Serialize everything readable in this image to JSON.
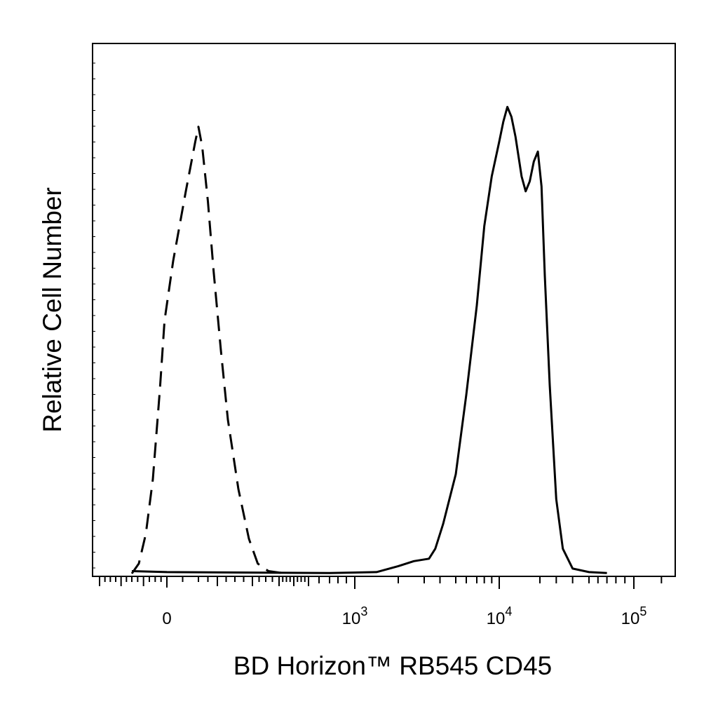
{
  "chart_data": {
    "type": "line",
    "title": "",
    "xlabel": "BD Horizon™ RB545 CD45",
    "ylabel": "Relative Cell Number",
    "x_scale": "biexponential (linear near 0, log above)",
    "x_tick_labels": [
      {
        "value": 0,
        "base": "0",
        "exp": ""
      },
      {
        "value": 1000,
        "base": "10",
        "exp": "3"
      },
      {
        "value": 10000,
        "base": "10",
        "exp": "4"
      },
      {
        "value": 100000,
        "base": "10",
        "exp": "5"
      }
    ],
    "xlim": [
      -300,
      250000
    ],
    "ylim": [
      0,
      100
    ],
    "grid": false,
    "legend": "none",
    "series": [
      {
        "style": "dashed",
        "color": "#000000",
        "points": [
          [
            -150,
            0
          ],
          [
            -120,
            2
          ],
          [
            -90,
            8
          ],
          [
            -60,
            19
          ],
          [
            -30,
            37
          ],
          [
            -10,
            51
          ],
          [
            10,
            63
          ],
          [
            30,
            77
          ],
          [
            45,
            87
          ],
          [
            50,
            90
          ],
          [
            60,
            86
          ],
          [
            75,
            75
          ],
          [
            90,
            61
          ],
          [
            110,
            45
          ],
          [
            130,
            31
          ],
          [
            160,
            17
          ],
          [
            190,
            7
          ],
          [
            220,
            2
          ],
          [
            260,
            0.5
          ],
          [
            300,
            0.2
          ],
          [
            340,
            0.1
          ]
        ]
      },
      {
        "style": "solid",
        "color": "#000000",
        "points": [
          [
            -150,
            0.5
          ],
          [
            0,
            0.3
          ],
          [
            200,
            0.2
          ],
          [
            700,
            0.1
          ],
          [
            1500,
            0.3
          ],
          [
            2000,
            1.5
          ],
          [
            2600,
            2.5
          ],
          [
            3300,
            3
          ],
          [
            3700,
            5
          ],
          [
            4200,
            10
          ],
          [
            5000,
            20
          ],
          [
            6000,
            36
          ],
          [
            7000,
            54
          ],
          [
            8000,
            70
          ],
          [
            9000,
            80
          ],
          [
            10000,
            87
          ],
          [
            11000,
            91
          ],
          [
            12000,
            94
          ],
          [
            13000,
            92
          ],
          [
            14000,
            88
          ],
          [
            15500,
            80
          ],
          [
            16500,
            77
          ],
          [
            17500,
            79
          ],
          [
            18500,
            83
          ],
          [
            19500,
            85
          ],
          [
            21000,
            78
          ],
          [
            23000,
            60
          ],
          [
            26000,
            38
          ],
          [
            30000,
            15
          ],
          [
            34000,
            5
          ],
          [
            40000,
            1
          ],
          [
            50000,
            0.3
          ],
          [
            70000,
            0.1
          ]
        ]
      }
    ]
  }
}
